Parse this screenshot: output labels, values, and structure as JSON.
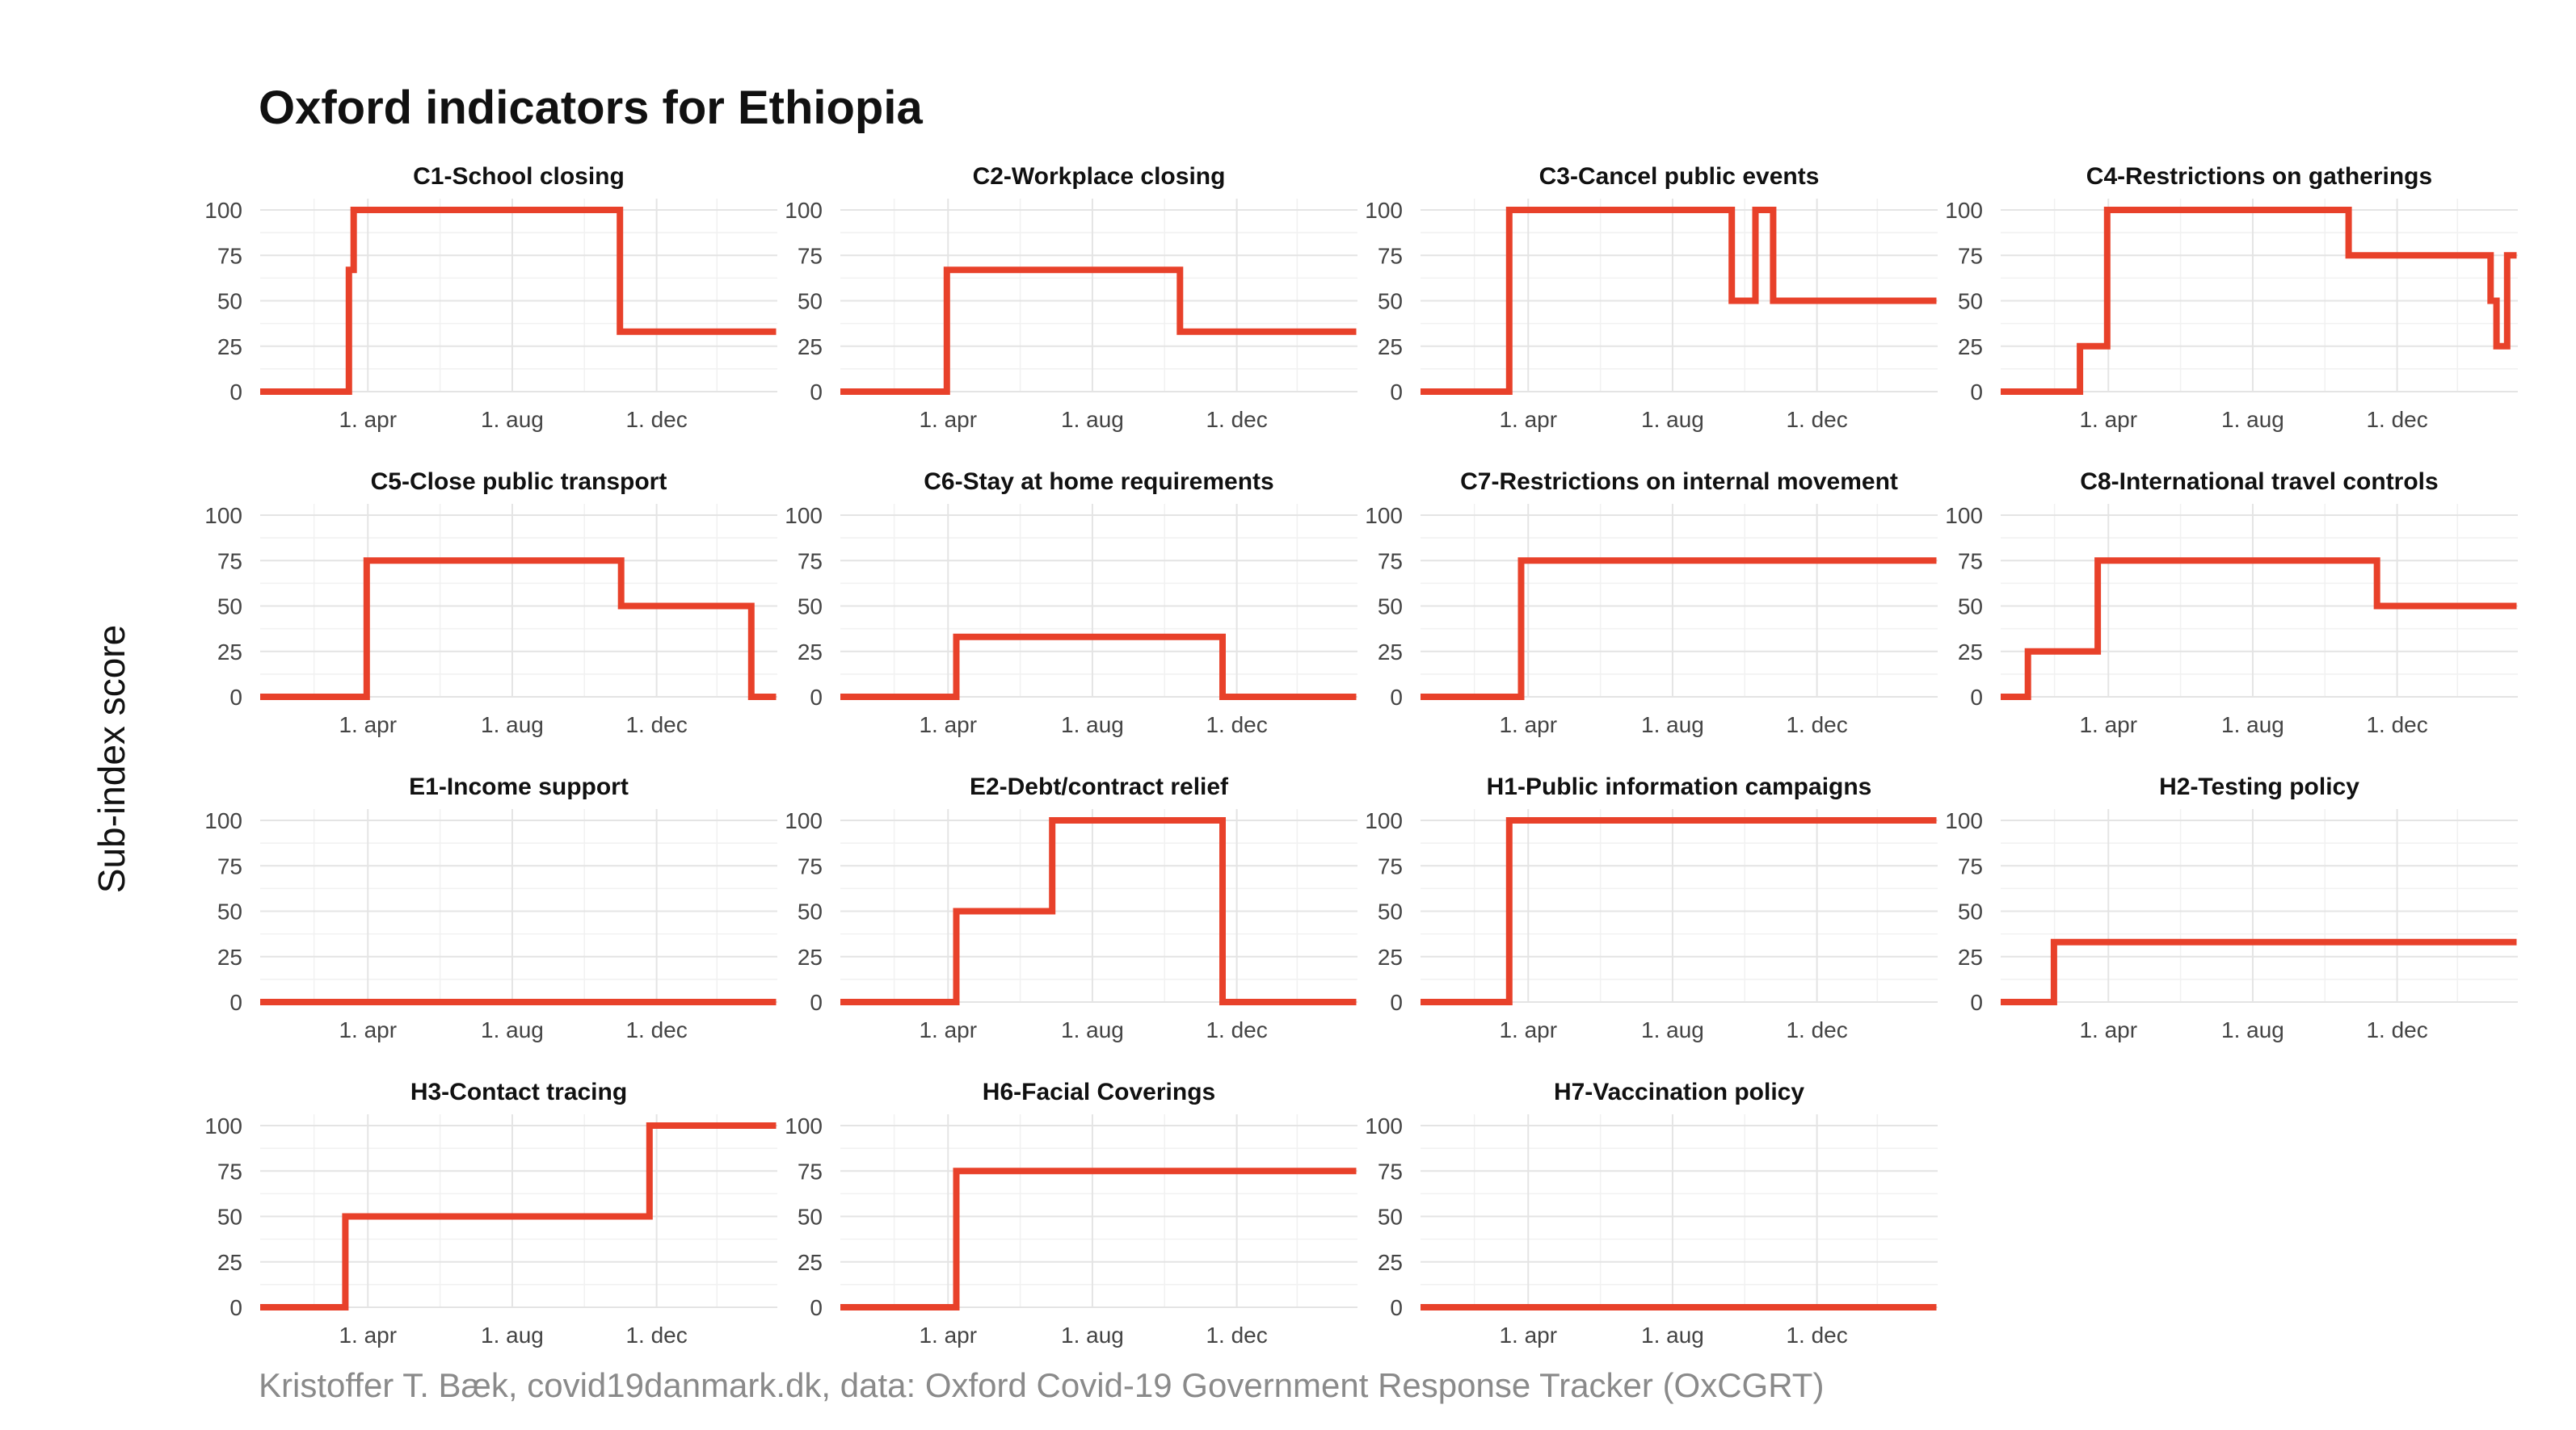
{
  "title": "Oxford indicators for Ethiopia",
  "y_axis_label": "Sub-index score",
  "caption": "Kristoffer T. Bæk, covid19danmark.dk, data: Oxford Covid-19 Government Response Tracker (OxCGRT)",
  "colors": {
    "series": "#e8412a",
    "grid": "#e4e4e4"
  },
  "chart_data": {
    "type": "line",
    "facets": "4 columns x 4 rows",
    "x_axis": {
      "type": "date",
      "range": [
        "2020-01-01",
        "2021-03-13"
      ],
      "ticks": [
        "2020-04-01",
        "2020-08-01",
        "2020-12-01"
      ],
      "tick_labels": [
        "1. apr",
        "1. aug",
        "1. dec"
      ]
    },
    "y_axis": {
      "range": [
        0,
        100
      ],
      "ticks": [
        0,
        25,
        50,
        75,
        100
      ],
      "tick_labels": [
        "0",
        "25",
        "50",
        "75",
        "100"
      ]
    },
    "grid": true,
    "panels": [
      {
        "title": "C1-School closing",
        "steps": [
          [
            "2020-01-01",
            0
          ],
          [
            "2020-03-16",
            67
          ],
          [
            "2020-03-20",
            100
          ],
          [
            "2020-10-31",
            33
          ],
          [
            "2021-03-12",
            33
          ]
        ]
      },
      {
        "title": "C2-Workplace closing",
        "steps": [
          [
            "2020-01-01",
            0
          ],
          [
            "2020-03-31",
            67
          ],
          [
            "2020-10-14",
            33
          ],
          [
            "2021-03-12",
            33
          ]
        ]
      },
      {
        "title": "C3-Cancel public events",
        "steps": [
          [
            "2020-01-01",
            0
          ],
          [
            "2020-03-16",
            100
          ],
          [
            "2020-09-20",
            50
          ],
          [
            "2020-10-10",
            100
          ],
          [
            "2020-10-25",
            50
          ],
          [
            "2021-03-12",
            50
          ]
        ]
      },
      {
        "title": "C4-Restrictions on gatherings",
        "steps": [
          [
            "2020-01-01",
            0
          ],
          [
            "2020-03-08",
            25
          ],
          [
            "2020-03-31",
            100
          ],
          [
            "2020-10-21",
            75
          ],
          [
            "2021-02-18",
            50
          ],
          [
            "2021-02-23",
            25
          ],
          [
            "2021-03-04",
            75
          ],
          [
            "2021-03-12",
            75
          ]
        ]
      },
      {
        "title": "C5-Close public transport",
        "steps": [
          [
            "2020-01-01",
            0
          ],
          [
            "2020-03-31",
            75
          ],
          [
            "2020-11-01",
            50
          ],
          [
            "2021-02-19",
            0
          ],
          [
            "2021-03-12",
            0
          ]
        ]
      },
      {
        "title": "C6-Stay at home requirements",
        "steps": [
          [
            "2020-01-01",
            0
          ],
          [
            "2020-04-08",
            33
          ],
          [
            "2020-11-19",
            0
          ],
          [
            "2021-03-12",
            0
          ]
        ]
      },
      {
        "title": "C7-Restrictions on internal movement",
        "steps": [
          [
            "2020-01-01",
            0
          ],
          [
            "2020-03-26",
            75
          ],
          [
            "2021-03-12",
            75
          ]
        ]
      },
      {
        "title": "C8-International travel controls",
        "steps": [
          [
            "2020-01-01",
            0
          ],
          [
            "2020-01-24",
            25
          ],
          [
            "2020-03-23",
            75
          ],
          [
            "2020-11-14",
            50
          ],
          [
            "2021-03-12",
            50
          ]
        ]
      },
      {
        "title": "E1-Income support",
        "steps": [
          [
            "2020-01-01",
            0
          ],
          [
            "2021-03-12",
            0
          ]
        ]
      },
      {
        "title": "E2-Debt/contract relief",
        "steps": [
          [
            "2020-01-01",
            0
          ],
          [
            "2020-04-08",
            50
          ],
          [
            "2020-06-28",
            100
          ],
          [
            "2020-11-19",
            0
          ],
          [
            "2021-03-12",
            0
          ]
        ]
      },
      {
        "title": "H1-Public information campaigns",
        "steps": [
          [
            "2020-01-01",
            0
          ],
          [
            "2020-03-16",
            100
          ],
          [
            "2021-03-12",
            100
          ]
        ]
      },
      {
        "title": "H2-Testing policy",
        "steps": [
          [
            "2020-01-01",
            0
          ],
          [
            "2020-02-15",
            33
          ],
          [
            "2021-03-12",
            33
          ]
        ]
      },
      {
        "title": "H3-Contact tracing",
        "steps": [
          [
            "2020-01-01",
            0
          ],
          [
            "2020-03-13",
            50
          ],
          [
            "2020-11-25",
            100
          ],
          [
            "2021-03-12",
            100
          ]
        ]
      },
      {
        "title": "H6-Facial Coverings",
        "steps": [
          [
            "2020-01-01",
            0
          ],
          [
            "2020-04-08",
            75
          ],
          [
            "2021-03-12",
            75
          ]
        ]
      },
      {
        "title": "H7-Vaccination policy",
        "steps": [
          [
            "2020-01-01",
            0
          ],
          [
            "2021-03-12",
            0
          ]
        ]
      }
    ]
  }
}
